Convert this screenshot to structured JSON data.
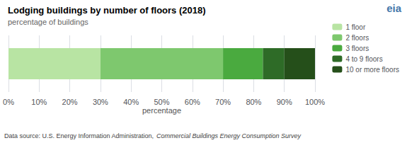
{
  "chart_data": {
    "type": "bar",
    "orientation": "horizontal",
    "stacked": true,
    "title": "Lodging buildings by number of floors (2018)",
    "subtitle": "percentage of buildings",
    "xlabel": "percentage",
    "series": [
      {
        "name": "1 floor",
        "color": "#b8e4a3",
        "values": [
          30
        ]
      },
      {
        "name": "2 floors",
        "color": "#7ec86e",
        "values": [
          40
        ]
      },
      {
        "name": "3 floors",
        "color": "#4aaa3f",
        "values": [
          13
        ]
      },
      {
        "name": "4 to 9 floors",
        "color": "#2e6b27",
        "values": [
          7
        ]
      },
      {
        "name": "10 or more floors",
        "color": "#254f1a",
        "values": [
          10
        ]
      }
    ],
    "xlim": [
      0,
      100
    ],
    "xticks": [
      {
        "value": 0,
        "label": "0%"
      },
      {
        "value": 10,
        "label": "10%"
      },
      {
        "value": 20,
        "label": "20%"
      },
      {
        "value": 30,
        "label": "30%"
      },
      {
        "value": 40,
        "label": "40%"
      },
      {
        "value": 50,
        "label": "50%"
      },
      {
        "value": 60,
        "label": "60%"
      },
      {
        "value": 70,
        "label": "70%"
      },
      {
        "value": 80,
        "label": "80%"
      },
      {
        "value": 90,
        "label": "90%"
      },
      {
        "value": 100,
        "label": "100%"
      }
    ],
    "grid": true,
    "legend": "right",
    "tick_labels": "x",
    "annotations": [
      "eia",
      "Data source: U.S. Energy Information Administration,",
      "Commercial Buildings Energy Consumption Survey"
    ]
  }
}
